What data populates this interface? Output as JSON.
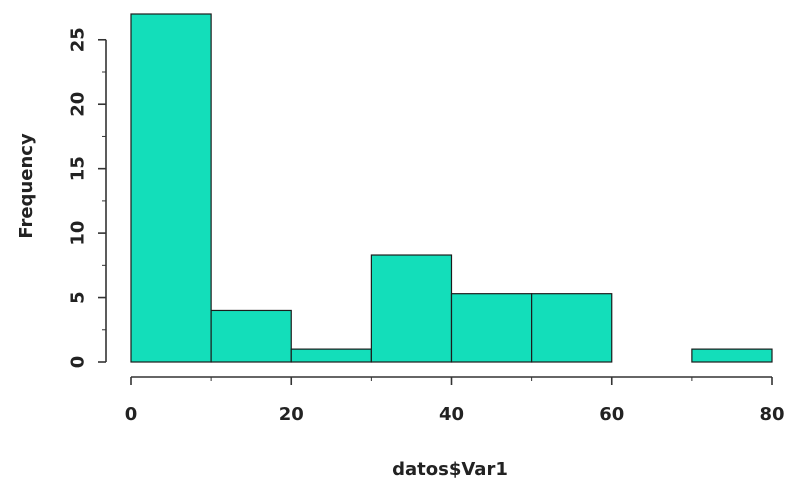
{
  "chart_data": {
    "type": "bar",
    "subtype": "histogram",
    "title": "",
    "xlabel": "datos$Var1",
    "ylabel": "Frequency",
    "bin_edges": [
      0,
      10,
      20,
      30,
      40,
      50,
      60,
      70,
      80
    ],
    "values": [
      27,
      4,
      1,
      8.3,
      5.3,
      5.3,
      0,
      1
    ],
    "xlim": [
      0,
      80
    ],
    "ylim": [
      0,
      27
    ],
    "x_ticks": [
      0,
      20,
      40,
      60,
      80
    ],
    "y_ticks": [
      0,
      5,
      10,
      15,
      20,
      25
    ],
    "bar_color": "#13DEBA",
    "grid": false,
    "legend": "none"
  }
}
